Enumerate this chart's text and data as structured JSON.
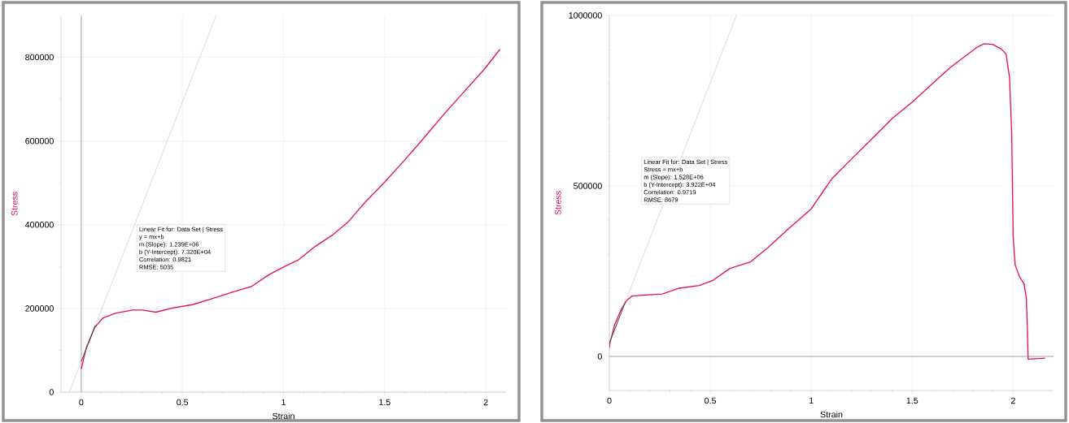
{
  "chart_data": [
    {
      "type": "line",
      "xlabel": "Strain",
      "ylabel": "Stress",
      "xlim": [
        -0.1,
        2.1
      ],
      "ylim": [
        0,
        900000
      ],
      "xticks": [
        0,
        0.5,
        1,
        1.5,
        2
      ],
      "yticks": [
        0,
        200000,
        400000,
        600000,
        800000
      ],
      "grid": true,
      "marker": "none",
      "ref_lines": [
        {
          "axis": "x",
          "value": 0,
          "color": "#a6a6a6"
        }
      ],
      "annotations": [
        "Linear Fit for: Data Set | Stress",
        "y = mx+b",
        "m (Slope): 1.239E+06",
        "b (Y-Intercept): 7.320E+04",
        "Correlation: 0.9821",
        "RMSE: 5035"
      ],
      "series": [
        {
          "color": "#e3134b",
          "x": [
            0,
            0.025,
            0.066,
            0.107,
            0.172,
            0.254,
            0.303,
            0.369,
            0.451,
            0.549,
            0.631,
            0.746,
            0.844,
            0.926,
            1.0,
            1.074,
            1.156,
            1.238,
            1.32,
            1.402,
            1.5,
            1.598,
            1.697,
            1.795,
            1.893,
            1.992,
            2.07
          ],
          "values": [
            55000,
            106000,
            154000,
            177000,
            189000,
            196000,
            196000,
            191000,
            201000,
            209000,
            221000,
            239000,
            253000,
            280000,
            299000,
            316000,
            348000,
            374000,
            407000,
            453000,
            502000,
            554000,
            609000,
            665000,
            718000,
            771000,
            819000
          ]
        },
        {
          "color": "#cfcfcf",
          "x": [
            -0.059,
            0.667
          ],
          "values": [
            0,
            900000
          ]
        },
        {
          "color": "#1a1a1a",
          "x": [
            0,
            0.07
          ],
          "values": [
            73000,
            160000
          ]
        }
      ]
    },
    {
      "type": "line",
      "xlabel": "Strain",
      "ylabel": "Stress",
      "xlim": [
        0,
        2.2
      ],
      "ylim": [
        -100000,
        1000000
      ],
      "xticks": [
        0,
        0.5,
        1,
        1.5,
        2
      ],
      "yticks": [
        0,
        500000,
        1000000
      ],
      "grid": true,
      "marker": "none",
      "ref_lines": [
        {
          "axis": "y",
          "value": 0,
          "color": "#a6a6a6"
        }
      ],
      "annotations": [
        "Linear Fit for: Data Set | Stress",
        "Stress = mx+b",
        "m (Slope): 1.528E+06",
        "b (Y-Intercept): 3.922E+04",
        "Correlation: 0.9719",
        "RMSE: 8679"
      ],
      "series": [
        {
          "color": "#e3134b",
          "x": [
            0,
            0.003,
            0.027,
            0.06,
            0.086,
            0.111,
            0.178,
            0.262,
            0.346,
            0.446,
            0.513,
            0.597,
            0.698,
            0.782,
            0.883,
            1.0,
            1.101,
            1.201,
            1.319,
            1.403,
            1.5,
            1.587,
            1.688,
            1.755,
            1.822,
            1.856,
            1.898,
            1.94,
            1.965,
            1.982,
            1.993,
            2.0,
            2.01,
            2.032,
            2.054,
            2.065,
            2.07,
            2.074,
            2.107,
            2.158
          ],
          "values": [
            25000,
            40000,
            94000,
            139000,
            164000,
            177000,
            180000,
            183000,
            200000,
            208000,
            223000,
            258000,
            277000,
            317000,
            372000,
            433000,
            520000,
            580000,
            649000,
            699000,
            746000,
            793000,
            847000,
            877000,
            907000,
            917000,
            915000,
            902000,
            887000,
            818000,
            649000,
            352000,
            268000,
            233000,
            213000,
            173000,
            94000,
            -8000,
            -7000,
            -5000
          ]
        },
        {
          "color": "#cfcfcf",
          "x": [
            0,
            0.629
          ],
          "values": [
            39000,
            1000000
          ]
        },
        {
          "color": "#1a1a1a",
          "x": [
            0,
            0.08
          ],
          "values": [
            39000,
            161000
          ]
        }
      ]
    }
  ]
}
